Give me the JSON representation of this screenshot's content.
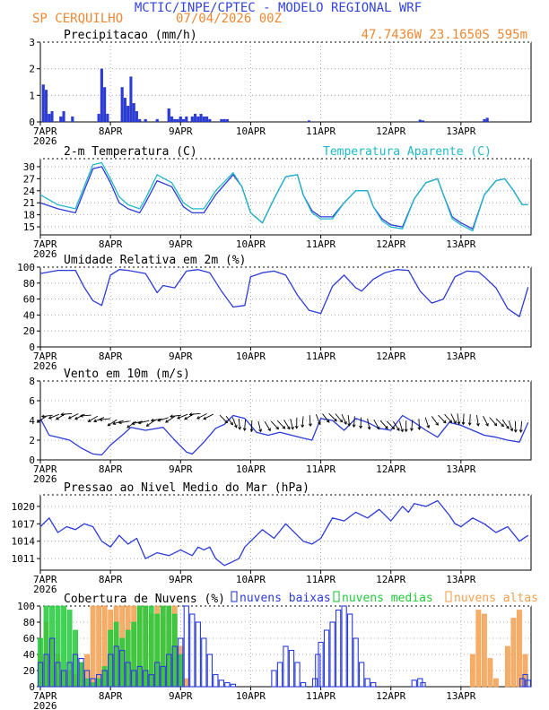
{
  "header": {
    "title": "MCTIC/INPE/CPTEC - MODELO REGIONAL WRF",
    "location": "SP CERQUILHO",
    "date": "07/04/2026 00Z",
    "coords": "47.7436W 23.1650S 595m"
  },
  "colors": {
    "blue": "#2b3bd9",
    "cyan": "#1fb8c8",
    "green": "#22c93a",
    "orange": "#f2a050",
    "title_blue": "#3344dd",
    "title_orange": "#ee8833"
  },
  "x_axis": {
    "tick_labels": [
      "7APR",
      "8APR",
      "9APR",
      "10APR",
      "11APR",
      "12APR",
      "13APR"
    ],
    "year_label": "2026"
  },
  "chart_data": [
    {
      "type": "bar",
      "title": "Precipitacao (mm/h)",
      "x_unit": "hours since 7APR 00Z",
      "ylim": [
        0,
        3
      ],
      "yticks": [
        "0",
        "1",
        "2",
        "3"
      ],
      "x": [
        1,
        2,
        3,
        4,
        7,
        8,
        11,
        20,
        21,
        22,
        23,
        28,
        29,
        30,
        31,
        32,
        33,
        34,
        36,
        40,
        44,
        45,
        46,
        47,
        48,
        49,
        50,
        52,
        53,
        54,
        55,
        56,
        57,
        58,
        62,
        63,
        64,
        92,
        130,
        131,
        152,
        153
      ],
      "values": [
        1.4,
        1.2,
        0.3,
        0.4,
        0.2,
        0.4,
        0.2,
        0.3,
        2.0,
        1.3,
        0.3,
        1.3,
        0.9,
        0.6,
        1.7,
        0.7,
        0.4,
        0.1,
        0.1,
        0.1,
        0.5,
        0.2,
        0.1,
        0.1,
        0.2,
        0.1,
        0.2,
        0.2,
        0.3,
        0.2,
        0.3,
        0.2,
        0.2,
        0.1,
        0.1,
        0.1,
        0.1,
        0.05,
        0.08,
        0.05,
        0.1,
        0.15
      ]
    },
    {
      "type": "line",
      "title": "2-m Temperatura (C)",
      "ylim": [
        13,
        32
      ],
      "yticks": [
        "15",
        "18",
        "21",
        "24",
        "27",
        "30"
      ],
      "series": [
        {
          "name": "2-m Temperatura (C)",
          "color": "blue",
          "x": [
            0,
            6,
            12,
            15,
            18,
            21,
            24,
            27,
            30,
            34,
            36,
            40,
            45,
            49,
            52,
            56,
            60,
            66,
            69,
            72,
            76,
            80,
            84,
            88,
            90,
            93,
            96,
            100,
            104,
            108,
            112,
            114,
            117,
            120,
            124,
            128,
            132,
            136,
            138,
            141,
            144,
            148,
            152,
            156,
            159,
            162,
            165,
            167
          ],
          "values": [
            21,
            19.5,
            18.5,
            24,
            29.5,
            30,
            26,
            21,
            19.5,
            18.5,
            21,
            26.5,
            25,
            20,
            18.5,
            18.5,
            23,
            28,
            25,
            18.5,
            16,
            22,
            27.5,
            28,
            23,
            19,
            17.5,
            17.5,
            21,
            24,
            24,
            20,
            17,
            15.5,
            15,
            22,
            26,
            27,
            23,
            17.5,
            16,
            14.5,
            23,
            26.5,
            27,
            24,
            20.5,
            20.5
          ]
        },
        {
          "name": "Temperatura Aparente (C)",
          "color": "cyan",
          "x": [
            0,
            6,
            12,
            15,
            18,
            21,
            24,
            27,
            30,
            34,
            36,
            40,
            45,
            49,
            52,
            56,
            60,
            66,
            69,
            72,
            76,
            80,
            84,
            88,
            90,
            93,
            96,
            100,
            104,
            108,
            112,
            114,
            117,
            120,
            124,
            128,
            132,
            136,
            138,
            141,
            144,
            148,
            152,
            156,
            159,
            162,
            165,
            167
          ],
          "values": [
            23,
            20.5,
            19.5,
            25,
            30.5,
            31,
            27,
            22.5,
            20.5,
            19.5,
            22,
            28,
            26,
            21,
            19.5,
            19.5,
            24,
            28.5,
            25,
            18.5,
            16,
            22,
            27.5,
            28,
            23,
            18.5,
            17,
            17,
            21,
            24,
            24,
            20,
            16.5,
            15,
            14.5,
            22,
            26,
            27,
            23,
            17,
            15.5,
            14,
            23,
            26.5,
            27,
            24,
            20.5,
            20.5
          ]
        }
      ]
    },
    {
      "type": "line",
      "title": "Umidade Relativa em 2m (%)",
      "ylim": [
        0,
        100
      ],
      "yticks": [
        "0",
        "20",
        "40",
        "60",
        "80",
        "100"
      ],
      "series": [
        {
          "name": "Umidade Relativa em 2m (%)",
          "color": "blue",
          "x": [
            0,
            6,
            12,
            15,
            18,
            21,
            24,
            27,
            30,
            36,
            40,
            42,
            46,
            50,
            54,
            58,
            62,
            66,
            70,
            72,
            76,
            80,
            84,
            88,
            92,
            96,
            100,
            104,
            108,
            110,
            114,
            118,
            122,
            126,
            130,
            134,
            138,
            142,
            146,
            150,
            152,
            156,
            160,
            164,
            167
          ],
          "values": [
            92,
            96,
            96,
            75,
            58,
            52,
            90,
            97,
            96,
            92,
            68,
            77,
            74,
            95,
            97,
            93,
            70,
            50,
            52,
            88,
            93,
            95,
            90,
            65,
            46,
            42,
            76,
            90,
            74,
            70,
            85,
            93,
            97,
            96,
            70,
            55,
            60,
            88,
            95,
            94,
            88,
            74,
            48,
            38,
            75
          ]
        }
      ]
    },
    {
      "type": "line",
      "title": "Vento em 10m (m/s)",
      "ylim": [
        0,
        8
      ],
      "yticks": [
        "0",
        "2",
        "4",
        "6",
        "8"
      ],
      "series": [
        {
          "name": "Vento em 10m (m/s)",
          "color": "blue",
          "x": [
            0,
            3,
            6,
            10,
            14,
            18,
            21,
            24,
            28,
            31,
            36,
            42,
            46,
            50,
            52,
            56,
            60,
            63,
            66,
            70,
            74,
            78,
            82,
            86,
            90,
            93,
            96,
            100,
            104,
            108,
            112,
            116,
            120,
            124,
            128,
            132,
            136,
            140,
            144,
            148,
            152,
            156,
            160,
            164,
            167
          ],
          "values": [
            4.2,
            2.5,
            2.3,
            2.0,
            1.2,
            0.6,
            0.5,
            1.5,
            2.5,
            3.3,
            3.0,
            3.3,
            2.0,
            0.8,
            0.6,
            1.8,
            3.2,
            3.6,
            4.5,
            4.2,
            2.8,
            2.5,
            2.8,
            2.5,
            2.2,
            2.0,
            4.2,
            4.0,
            3.0,
            4.2,
            3.8,
            3.2,
            3.0,
            4.5,
            3.8,
            3.0,
            2.3,
            3.8,
            3.5,
            3.0,
            2.5,
            2.3,
            2.0,
            1.8,
            3.8
          ]
        }
      ]
    },
    {
      "type": "line",
      "title": "Pressao ao Nivel Medio do Mar (hPa)",
      "ylim": [
        1009,
        1022
      ],
      "yticks": [
        "1011",
        "1014",
        "1017",
        "1020"
      ],
      "series": [
        {
          "name": "Pressao ao Nivel Medio do Mar (hPa)",
          "color": "blue",
          "x": [
            0,
            3,
            6,
            9,
            12,
            15,
            18,
            21,
            24,
            27,
            30,
            33,
            36,
            40,
            44,
            48,
            52,
            54,
            56,
            58,
            60,
            63,
            66,
            68,
            69,
            70,
            72,
            76,
            80,
            84,
            88,
            90,
            93,
            96,
            100,
            104,
            108,
            112,
            116,
            120,
            124,
            126,
            128,
            132,
            136,
            140,
            142,
            144,
            148,
            152,
            156,
            160,
            164,
            167
          ],
          "values": [
            1016.5,
            1018,
            1015.5,
            1016.5,
            1016,
            1017,
            1016.5,
            1014,
            1013,
            1015,
            1013.5,
            1014.5,
            1011,
            1012,
            1011.5,
            1012.5,
            1011.5,
            1013,
            1012.5,
            1013,
            1011,
            1009.8,
            1010.5,
            1011,
            1012,
            1013,
            1014,
            1016,
            1014.5,
            1017,
            1015,
            1014,
            1013.5,
            1014.5,
            1018,
            1017.5,
            1019,
            1018,
            1019.5,
            1017.5,
            1020,
            1019,
            1020.5,
            1020,
            1021,
            1018.5,
            1017,
            1016.5,
            1018,
            1017,
            1015.5,
            1016.5,
            1014,
            1015
          ]
        }
      ]
    },
    {
      "type": "bar",
      "title": "Cobertura de Nuvens (%)",
      "ylim": [
        0,
        100
      ],
      "yticks": [
        "0",
        "20",
        "40",
        "60",
        "80",
        "100"
      ],
      "series": [
        {
          "name": "nuvens baixas",
          "color": "blue",
          "x": [
            0,
            2,
            4,
            6,
            8,
            10,
            12,
            14,
            16,
            18,
            20,
            22,
            24,
            26,
            28,
            30,
            32,
            34,
            36,
            38,
            40,
            42,
            44,
            46,
            48,
            50,
            52,
            54,
            56,
            58,
            60,
            62,
            64,
            66,
            80,
            82,
            84,
            86,
            88,
            90,
            94,
            95,
            96,
            98,
            100,
            102,
            104,
            106,
            108,
            110,
            112,
            114,
            128,
            130,
            131,
            165,
            166,
            167
          ],
          "values": [
            30,
            40,
            60,
            30,
            20,
            30,
            40,
            35,
            20,
            10,
            15,
            20,
            40,
            50,
            45,
            30,
            20,
            25,
            20,
            15,
            30,
            25,
            40,
            50,
            60,
            100,
            90,
            80,
            60,
            40,
            15,
            8,
            5,
            3,
            20,
            30,
            50,
            45,
            30,
            5,
            10,
            40,
            55,
            70,
            80,
            95,
            100,
            90,
            60,
            30,
            10,
            5,
            8,
            10,
            5,
            10,
            15,
            8
          ]
        },
        {
          "name": "nuvens medias",
          "color": "green",
          "x": [
            0,
            2,
            4,
            6,
            8,
            10,
            12,
            14,
            16,
            18,
            20,
            22,
            24,
            26,
            28,
            30,
            32,
            34,
            36,
            38,
            40,
            42,
            44,
            46,
            48
          ],
          "values": [
            60,
            100,
            100,
            100,
            100,
            95,
            70,
            30,
            10,
            5,
            10,
            25,
            70,
            80,
            60,
            70,
            80,
            100,
            100,
            100,
            90,
            100,
            100,
            90,
            40
          ]
        },
        {
          "name": "nuvens altas",
          "color": "orange",
          "x": [
            0,
            2,
            4,
            6,
            8,
            10,
            12,
            14,
            16,
            18,
            20,
            22,
            24,
            26,
            28,
            30,
            32,
            34,
            36,
            38,
            40,
            42,
            44,
            46,
            48,
            50,
            148,
            150,
            152,
            154,
            156,
            160,
            162,
            164,
            166
          ],
          "values": [
            40,
            80,
            60,
            40,
            20,
            20,
            15,
            30,
            40,
            100,
            100,
            100,
            95,
            100,
            100,
            100,
            100,
            100,
            100,
            90,
            100,
            100,
            100,
            100,
            50,
            10,
            40,
            95,
            90,
            35,
            10,
            50,
            85,
            95,
            40
          ]
        }
      ]
    }
  ]
}
